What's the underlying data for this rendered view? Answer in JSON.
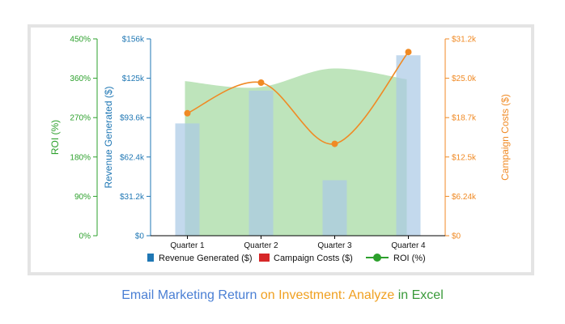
{
  "chart_data": {
    "type": "bar",
    "categories": [
      "Quarter 1",
      "Quarter 2",
      "Quarter 3",
      "Quarter 4"
    ],
    "series": [
      {
        "name": "Revenue Generated ($)",
        "kind": "bar",
        "axis": "revenue",
        "color": "#a9c9e6",
        "values": [
          89000,
          115000,
          44000,
          143000
        ]
      },
      {
        "name": "Campaign Costs ($)",
        "kind": "area",
        "axis": "cost",
        "color": "#a8dba4",
        "values": [
          24500,
          23500,
          26500,
          24800
        ]
      },
      {
        "name": "ROI (%)",
        "kind": "line",
        "axis": "roi",
        "color": "#f08a24",
        "values": [
          280,
          350,
          210,
          420
        ]
      }
    ],
    "legend": [
      {
        "label": "Revenue Generated ($)",
        "color": "#1f77b4",
        "marker": "bar"
      },
      {
        "label": "Campaign Costs ($)",
        "color": "#d62728",
        "marker": "bar"
      },
      {
        "label": "ROI (%)",
        "color": "#2ca02c",
        "marker": "line"
      }
    ],
    "axes": {
      "roi": {
        "label": "ROI (%)",
        "color": "#2ca02c",
        "range": [
          0,
          450
        ],
        "ticks": [
          "0%",
          "90%",
          "180%",
          "270%",
          "360%",
          "450%"
        ]
      },
      "revenue": {
        "label": "Revenue Generated ($)",
        "color": "#1f77b4",
        "range": [
          0,
          156000
        ],
        "ticks": [
          "$0",
          "$31.2k",
          "$62.4k",
          "$93.6k",
          "$125k",
          "$156k"
        ]
      },
      "cost": {
        "label": "Campaign Costs ($)",
        "color": "#f08a24",
        "range": [
          0,
          31200
        ],
        "ticks": [
          "$0",
          "$6.24k",
          "$12.5k",
          "$18.7k",
          "$25.0k",
          "$31.2k"
        ]
      }
    },
    "legend_position": "bottom",
    "grid": false
  },
  "caption": {
    "parts": [
      {
        "text": "Email Marketing Return",
        "color": "#4a7fd4"
      },
      {
        "text": " on Investment: Analyze",
        "color": "#f0a020"
      },
      {
        "text": " in Excel",
        "color": "#3a9a3a"
      }
    ]
  }
}
